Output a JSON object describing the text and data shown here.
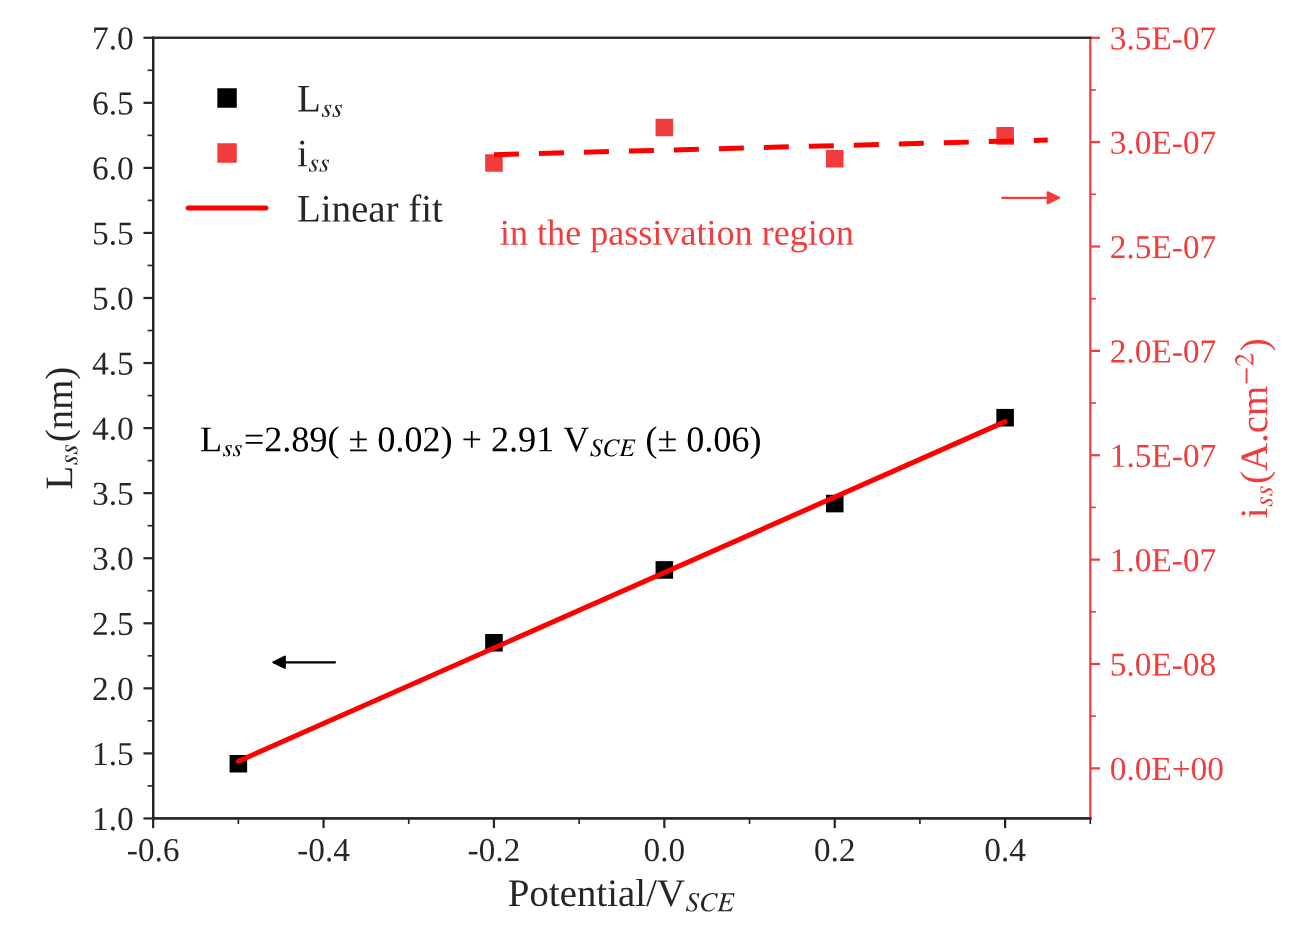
{
  "chart_data": {
    "type": "scatter",
    "xlabel": "Potential/V$_{SCE}$",
    "ylabel": "L$_{ss}$(nm)",
    "y2label": "i$_{ss}$(A.cm$^{−2}$)",
    "x": [
      -0.5,
      -0.2,
      0.0,
      0.2,
      0.4
    ],
    "series": [
      {
        "name": "L$_{ss}$",
        "color": "#000000",
        "marker": "square",
        "values": [
          1.42,
          2.35,
          2.91,
          3.42,
          4.08
        ]
      },
      {
        "name": "i$_{ss}$",
        "axis": "y2",
        "color": "#f03c3c",
        "marker": "square",
        "x": [
          -0.2,
          0.0,
          0.2,
          0.4
        ],
        "values": [
          2.9e-07,
          3.07e-07,
          2.92e-07,
          3.03e-07
        ]
      },
      {
        "name": "Linear fit",
        "type": "line",
        "color": "#ff0000",
        "line_style": "solid",
        "x": [
          -0.5,
          0.4
        ],
        "values": [
          1.44,
          4.05
        ]
      },
      {
        "type": "line",
        "axis": "y2",
        "color": "#ff0000",
        "line_style": "dashed",
        "x": [
          -0.2,
          0.45
        ],
        "values": [
          2.94e-07,
          3.01e-07
        ]
      }
    ],
    "xlim": [
      -0.6,
      0.5
    ],
    "xticks": [
      {
        "value": -0.6,
        "label": "-0.6"
      },
      {
        "value": -0.4,
        "label": "-0.4"
      },
      {
        "value": -0.2,
        "label": "-0.2"
      },
      {
        "value": 0.0,
        "label": "0.0"
      },
      {
        "value": 0.2,
        "label": "0.2"
      },
      {
        "value": 0.4,
        "label": "0.4"
      }
    ],
    "ylim": [
      1.0,
      7.0
    ],
    "yticks": [
      {
        "value": 1.0,
        "label": "1.0"
      },
      {
        "value": 1.5,
        "label": "1.5"
      },
      {
        "value": 2.0,
        "label": "2.0"
      },
      {
        "value": 2.5,
        "label": "2.5"
      },
      {
        "value": 3.0,
        "label": "3.0"
      },
      {
        "value": 3.5,
        "label": "3.5"
      },
      {
        "value": 4.0,
        "label": "4.0"
      },
      {
        "value": 4.5,
        "label": "4.5"
      },
      {
        "value": 5.0,
        "label": "5.0"
      },
      {
        "value": 5.5,
        "label": "5.5"
      },
      {
        "value": 6.0,
        "label": "6.0"
      },
      {
        "value": 6.5,
        "label": "6.5"
      },
      {
        "value": 7.0,
        "label": "7.0"
      }
    ],
    "y2lim": [
      -2.4e-08,
      3.5e-07
    ],
    "y2ticks": [
      {
        "value": 0,
        "label": "0.0E+00"
      },
      {
        "value": 5e-08,
        "label": "5.0E-08"
      },
      {
        "value": 1e-07,
        "label": "1.0E-07"
      },
      {
        "value": 1.5e-07,
        "label": "1.5E-07"
      },
      {
        "value": 2e-07,
        "label": "2.0E-07"
      },
      {
        "value": 2.5e-07,
        "label": "2.5E-07"
      },
      {
        "value": 3e-07,
        "label": "3.0E-07"
      },
      {
        "value": 3.5e-07,
        "label": "3.5E-07"
      }
    ],
    "annotations": [
      "L$_{ss}$=2.89( ± 0.02) + 2.91 V$_{SCE}$ (± 0.06)",
      "in the passivation region"
    ],
    "legend": "top left",
    "grid": false
  }
}
